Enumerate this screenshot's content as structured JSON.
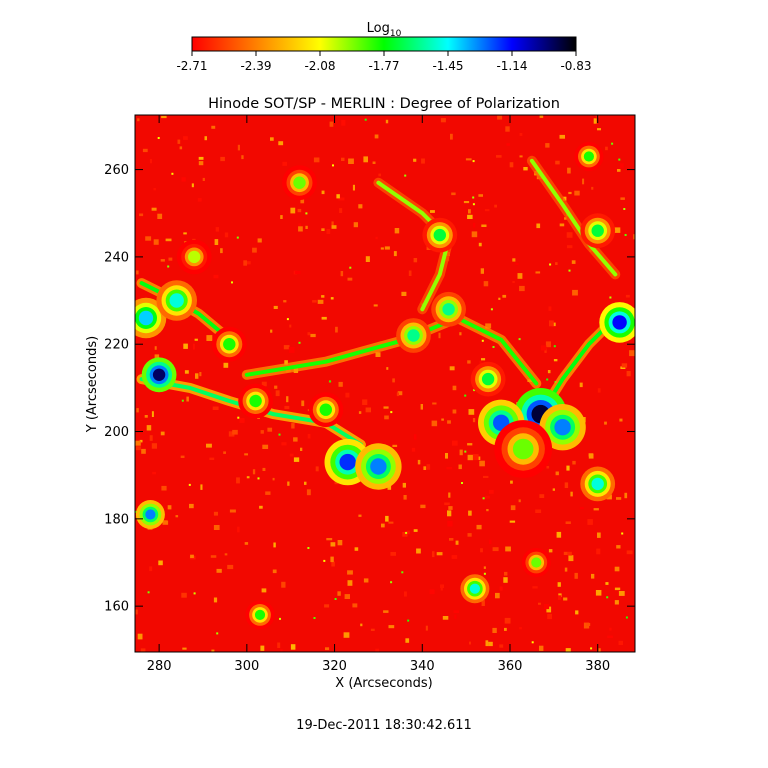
{
  "chart_data": {
    "type": "heatmap",
    "title": "Hinode SOT/SP - MERLIN : Degree of Polarization",
    "xlabel": "X (Arcseconds)",
    "ylabel": "Y (Arcseconds)",
    "xlim": [
      274.5,
      388.5
    ],
    "ylim": [
      149.5,
      272.5
    ],
    "x_ticks": [
      280,
      300,
      320,
      340,
      360,
      380
    ],
    "y_ticks": [
      160,
      180,
      200,
      220,
      240,
      260
    ],
    "timestamp": "19-Dec-2011 18:30:42.611",
    "colorbar": {
      "label_base": "Log",
      "label_sub": "10",
      "min": -2.71,
      "max": -0.83,
      "tick_labels": [
        "-2.71",
        "-2.39",
        "-2.08",
        "-1.77",
        "-1.45",
        "-1.14",
        "-0.83"
      ],
      "colors": [
        "#ff0000",
        "#ff8000",
        "#ffff00",
        "#00ff00",
        "#00ffff",
        "#0000ff",
        "#000000"
      ]
    },
    "features": [
      {
        "x": 367,
        "y": 204,
        "value": -0.9,
        "radius": 4.5
      },
      {
        "x": 358,
        "y": 202,
        "value": -1.25,
        "radius": 4
      },
      {
        "x": 372,
        "y": 201,
        "value": -1.3,
        "radius": 4
      },
      {
        "x": 363,
        "y": 196,
        "value": -1.9,
        "radius": 5
      },
      {
        "x": 323,
        "y": 193,
        "value": -1.2,
        "radius": 4
      },
      {
        "x": 330,
        "y": 192,
        "value": -1.3,
        "radius": 4
      },
      {
        "x": 280,
        "y": 213,
        "value": -0.95,
        "radius": 3
      },
      {
        "x": 385,
        "y": 225,
        "value": -1.15,
        "radius": 3.5
      },
      {
        "x": 277,
        "y": 226,
        "value": -1.4,
        "radius": 3.5
      },
      {
        "x": 284,
        "y": 230,
        "value": -1.5,
        "radius": 3.5
      },
      {
        "x": 380,
        "y": 188,
        "value": -1.5,
        "radius": 3
      },
      {
        "x": 278,
        "y": 181,
        "value": -1.3,
        "radius": 2.5
      },
      {
        "x": 352,
        "y": 164,
        "value": -1.5,
        "radius": 2.5
      },
      {
        "x": 338,
        "y": 222,
        "value": -1.6,
        "radius": 3
      },
      {
        "x": 346,
        "y": 228,
        "value": -1.6,
        "radius": 3
      },
      {
        "x": 344,
        "y": 245,
        "value": -1.7,
        "radius": 3
      },
      {
        "x": 355,
        "y": 212,
        "value": -1.7,
        "radius": 3
      },
      {
        "x": 302,
        "y": 207,
        "value": -1.8,
        "radius": 3
      },
      {
        "x": 318,
        "y": 205,
        "value": -1.8,
        "radius": 3
      },
      {
        "x": 312,
        "y": 257,
        "value": -1.9,
        "radius": 3
      },
      {
        "x": 380,
        "y": 246,
        "value": -1.7,
        "radius": 3
      },
      {
        "x": 296,
        "y": 220,
        "value": -1.8,
        "radius": 3
      },
      {
        "x": 303,
        "y": 158,
        "value": -1.8,
        "radius": 2.5
      },
      {
        "x": 366,
        "y": 170,
        "value": -1.9,
        "radius": 2.5
      },
      {
        "x": 378,
        "y": 263,
        "value": -1.8,
        "radius": 2.5
      },
      {
        "x": 288,
        "y": 240,
        "value": -2.0,
        "radius": 3
      }
    ],
    "filaments": [
      {
        "points": [
          [
            276,
            212
          ],
          [
            287,
            210
          ],
          [
            296,
            207
          ],
          [
            306,
            204
          ],
          [
            318,
            202
          ],
          [
            326,
            197
          ]
        ],
        "value": -1.65
      },
      {
        "points": [
          [
            300,
            213
          ],
          [
            318,
            216
          ],
          [
            336,
            221
          ],
          [
            348,
            226
          ],
          [
            358,
            221
          ],
          [
            366,
            211
          ]
        ],
        "value": -1.8
      },
      {
        "points": [
          [
            384,
            226
          ],
          [
            378,
            220
          ],
          [
            372,
            212
          ],
          [
            367,
            204
          ]
        ],
        "value": -1.75
      },
      {
        "points": [
          [
            330,
            257
          ],
          [
            340,
            250
          ],
          [
            346,
            244
          ],
          [
            344,
            236
          ],
          [
            340,
            228
          ]
        ],
        "value": -1.95
      },
      {
        "points": [
          [
            365,
            262
          ],
          [
            372,
            252
          ],
          [
            378,
            243
          ],
          [
            384,
            236
          ]
        ],
        "value": -1.95
      },
      {
        "points": [
          [
            276,
            234
          ],
          [
            282,
            231
          ],
          [
            289,
            227
          ],
          [
            295,
            222
          ]
        ],
        "value": -1.75
      }
    ]
  }
}
